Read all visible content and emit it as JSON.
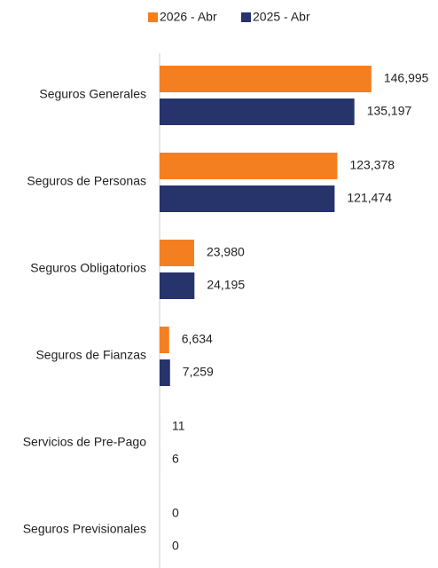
{
  "chart_data": {
    "type": "bar",
    "orientation": "horizontal",
    "categories": [
      "Seguros Generales",
      "Seguros de Personas",
      "Seguros Obligatorios",
      "Seguros de Fianzas",
      "Servicios de Pre-Pago",
      "Seguros Previsionales"
    ],
    "series": [
      {
        "name": "2026 - Abr",
        "color": "#f47f20",
        "values": [
          146995,
          123378,
          23980,
          6634,
          11,
          0
        ],
        "value_labels": [
          "146,995",
          "123,378",
          "23,980",
          "6,634",
          "11",
          "0"
        ]
      },
      {
        "name": "2025 - Abr",
        "color": "#27336b",
        "values": [
          135197,
          121474,
          24195,
          7259,
          6,
          0
        ],
        "value_labels": [
          "135,197",
          "121,474",
          "24,195",
          "7,259",
          "6",
          "0"
        ]
      }
    ],
    "xlim": [
      0,
      160000
    ],
    "legend": "top"
  }
}
